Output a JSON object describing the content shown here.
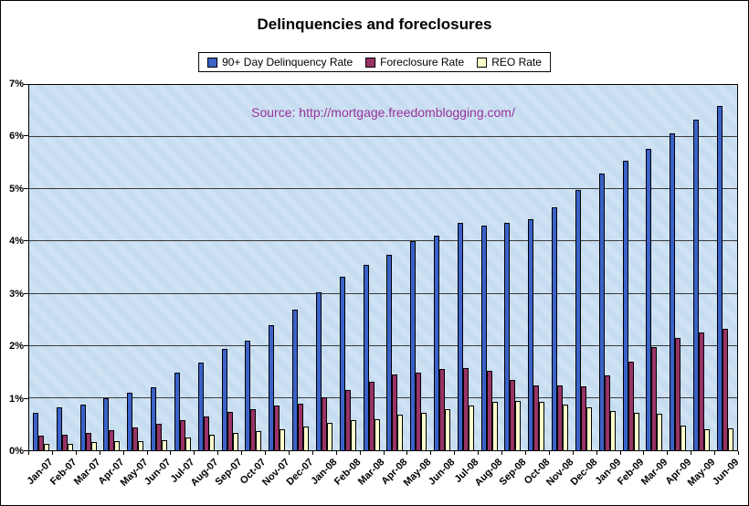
{
  "source_text": "Source: http://mortgage.freedomblogging.com/",
  "colors": {
    "plot_background": "#C9DFF2",
    "gridline": "#3A3A3A",
    "source_text": "#993399",
    "delinquency_bar": "#3A62C9",
    "foreclosure_bar": "#993366",
    "reo_bar": "#FFFFCC"
  },
  "chart_data": {
    "type": "bar",
    "title": "Delinquencies and foreclosures",
    "xlabel": "",
    "ylabel": "",
    "ylim": [
      0,
      7
    ],
    "grid": true,
    "legend_position": "top",
    "ytick_labels": [
      "0%",
      "1%",
      "2%",
      "3%",
      "4%",
      "5%",
      "6%",
      "7%"
    ],
    "categories": [
      "Jan-07",
      "Feb-07",
      "Mar-07",
      "Apr-07",
      "May-07",
      "Jun-07",
      "Jul-07",
      "Aug-07",
      "Sep-07",
      "Oct-07",
      "Nov-07",
      "Dec-07",
      "Jan-08",
      "Feb-08",
      "Mar-08",
      "Apr-08",
      "May-08",
      "Jun-08",
      "Jul-08",
      "Aug-08",
      "Sep-08",
      "Oct-08",
      "Nov-08",
      "Dec-08",
      "Jan-09",
      "Feb-09",
      "Mar-09",
      "Apr-09",
      "May-09",
      "Jun-09"
    ],
    "series": [
      {
        "name": "90+ Day Delinquency Rate",
        "color": "#3A62C9",
        "values": [
          0.72,
          0.82,
          0.87,
          1.0,
          1.1,
          1.2,
          1.48,
          1.68,
          1.95,
          2.1,
          2.4,
          2.7,
          3.02,
          3.32,
          3.55,
          3.75,
          4.0,
          4.12,
          4.35,
          4.3,
          4.35,
          4.43,
          4.65,
          4.98,
          5.3,
          5.55,
          5.78,
          6.08,
          6.33,
          6.6
        ]
      },
      {
        "name": "Foreclosure Rate",
        "color": "#993366",
        "values": [
          0.28,
          0.3,
          0.33,
          0.38,
          0.43,
          0.5,
          0.58,
          0.65,
          0.73,
          0.78,
          0.85,
          0.9,
          1.02,
          1.15,
          1.32,
          1.45,
          1.48,
          1.55,
          1.57,
          1.53,
          1.35,
          1.25,
          1.25,
          1.22,
          1.43,
          1.7,
          1.98,
          2.15,
          2.25,
          2.32
        ]
      },
      {
        "name": "REO Rate",
        "color": "#FFFFCC",
        "values": [
          0.12,
          0.13,
          0.15,
          0.17,
          0.18,
          0.2,
          0.25,
          0.3,
          0.33,
          0.37,
          0.4,
          0.45,
          0.52,
          0.57,
          0.6,
          0.68,
          0.72,
          0.78,
          0.85,
          0.93,
          0.95,
          0.92,
          0.88,
          0.82,
          0.75,
          0.72,
          0.7,
          0.48,
          0.4,
          0.42
        ]
      }
    ]
  }
}
